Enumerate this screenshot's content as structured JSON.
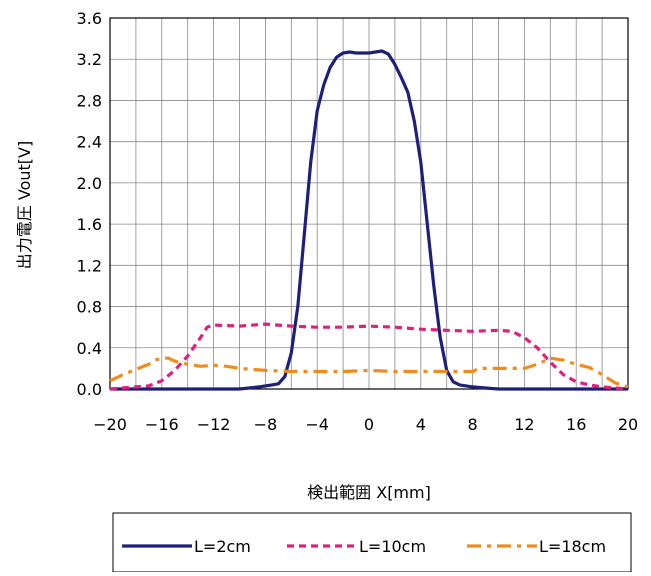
{
  "chart_data": {
    "type": "line",
    "title": "",
    "xlabel": "検出範囲 X[mm]",
    "ylabel": "出力電圧 Vout[V]",
    "xlim": [
      -20,
      20
    ],
    "ylim": [
      0.0,
      3.6
    ],
    "x_ticks": [
      "−20",
      "−16",
      "−12",
      "−8",
      "−4",
      "0",
      "4",
      "8",
      "12",
      "16",
      "20"
    ],
    "y_ticks": [
      "0.0",
      "0.4",
      "0.8",
      "1.2",
      "1.6",
      "2.0",
      "2.4",
      "2.8",
      "3.2",
      "3.6"
    ],
    "grid": true,
    "legend_position": "bottom",
    "series": [
      {
        "name": "L=2cm",
        "color": "#1f1f7a",
        "style": "solid",
        "points": [
          [
            -20,
            0.0
          ],
          [
            -14,
            0.0
          ],
          [
            -10,
            0.0
          ],
          [
            -8.5,
            0.02
          ],
          [
            -7.5,
            0.04
          ],
          [
            -7,
            0.05
          ],
          [
            -6.5,
            0.12
          ],
          [
            -6,
            0.35
          ],
          [
            -5.5,
            0.8
          ],
          [
            -5,
            1.5
          ],
          [
            -4.5,
            2.2
          ],
          [
            -4,
            2.7
          ],
          [
            -3.5,
            2.95
          ],
          [
            -3,
            3.12
          ],
          [
            -2.5,
            3.22
          ],
          [
            -2,
            3.26
          ],
          [
            -1.5,
            3.27
          ],
          [
            -1,
            3.26
          ],
          [
            0,
            3.26
          ],
          [
            0.5,
            3.27
          ],
          [
            1,
            3.28
          ],
          [
            1.5,
            3.25
          ],
          [
            2,
            3.15
          ],
          [
            2.5,
            3.02
          ],
          [
            3,
            2.88
          ],
          [
            3.5,
            2.6
          ],
          [
            4,
            2.2
          ],
          [
            4.5,
            1.6
          ],
          [
            5,
            1.0
          ],
          [
            5.5,
            0.5
          ],
          [
            6,
            0.18
          ],
          [
            6.5,
            0.07
          ],
          [
            7,
            0.04
          ],
          [
            8,
            0.02
          ],
          [
            9,
            0.01
          ],
          [
            10,
            0.0
          ],
          [
            20,
            0.0
          ]
        ]
      },
      {
        "name": "L=10cm",
        "color": "#e0207f",
        "style": "dashed",
        "points": [
          [
            -20,
            0.0
          ],
          [
            -18,
            0.02
          ],
          [
            -17,
            0.03
          ],
          [
            -16,
            0.08
          ],
          [
            -15,
            0.18
          ],
          [
            -14,
            0.32
          ],
          [
            -13,
            0.5
          ],
          [
            -12.5,
            0.6
          ],
          [
            -12,
            0.62
          ],
          [
            -10,
            0.61
          ],
          [
            -8,
            0.63
          ],
          [
            -6,
            0.61
          ],
          [
            -4,
            0.6
          ],
          [
            -2,
            0.6
          ],
          [
            0,
            0.61
          ],
          [
            2,
            0.6
          ],
          [
            4,
            0.58
          ],
          [
            6,
            0.57
          ],
          [
            8,
            0.56
          ],
          [
            10,
            0.57
          ],
          [
            11,
            0.56
          ],
          [
            12,
            0.5
          ],
          [
            13,
            0.4
          ],
          [
            14,
            0.26
          ],
          [
            15,
            0.14
          ],
          [
            16,
            0.07
          ],
          [
            17,
            0.04
          ],
          [
            18,
            0.02
          ],
          [
            20,
            0.0
          ]
        ]
      },
      {
        "name": "L=18cm",
        "color": "#f08c1e",
        "style": "dashdot",
        "points": [
          [
            -20,
            0.08
          ],
          [
            -19,
            0.14
          ],
          [
            -18,
            0.19
          ],
          [
            -17,
            0.24
          ],
          [
            -16.5,
            0.28
          ],
          [
            -16,
            0.3
          ],
          [
            -15.5,
            0.3
          ],
          [
            -15,
            0.27
          ],
          [
            -14,
            0.24
          ],
          [
            -13,
            0.22
          ],
          [
            -12,
            0.23
          ],
          [
            -11,
            0.22
          ],
          [
            -10,
            0.2
          ],
          [
            -8,
            0.18
          ],
          [
            -6,
            0.17
          ],
          [
            -4,
            0.17
          ],
          [
            -2,
            0.17
          ],
          [
            0,
            0.18
          ],
          [
            2,
            0.17
          ],
          [
            4,
            0.17
          ],
          [
            6,
            0.17
          ],
          [
            8,
            0.17
          ],
          [
            8.5,
            0.2
          ],
          [
            10,
            0.2
          ],
          [
            12,
            0.2
          ],
          [
            13,
            0.24
          ],
          [
            14,
            0.3
          ],
          [
            15,
            0.28
          ],
          [
            16,
            0.24
          ],
          [
            17,
            0.21
          ],
          [
            18,
            0.14
          ],
          [
            19,
            0.06
          ],
          [
            20,
            0.02
          ]
        ]
      }
    ]
  }
}
